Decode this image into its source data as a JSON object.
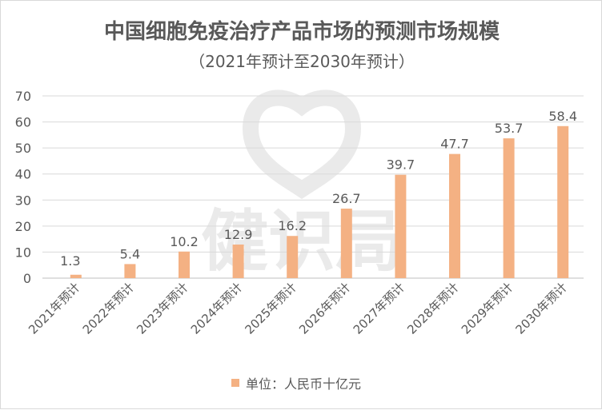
{
  "chart_data": {
    "type": "bar",
    "title": "中国细胞免疫治疗产品市场的预测市场规模",
    "subtitle": "（2021年预计至2030年预计）",
    "categories": [
      "2021年预计",
      "2022年预计",
      "2023年预计",
      "2024年预计",
      "2025年预计",
      "2026年预计",
      "2027年预计",
      "2028年预计",
      "2029年预计",
      "2030年预计"
    ],
    "series": [
      {
        "name": "单位：人民币十亿元",
        "values": [
          1.3,
          5.4,
          10.2,
          12.9,
          16.2,
          26.7,
          39.7,
          47.7,
          53.7,
          58.4
        ]
      }
    ],
    "data_labels": [
      "1.3",
      "5.4",
      "10.2",
      "12.9",
      "16.2",
      "26.7",
      "39.7",
      "47.7",
      "53.7",
      "58.4"
    ],
    "ylim": [
      0,
      70
    ],
    "yticks": [
      0,
      10,
      20,
      30,
      40,
      50,
      60,
      70
    ],
    "xlabel": "",
    "ylabel": "",
    "grid": true,
    "legend_position": "bottom",
    "bar_color": "#F4B183",
    "watermark_text": "健识局"
  }
}
